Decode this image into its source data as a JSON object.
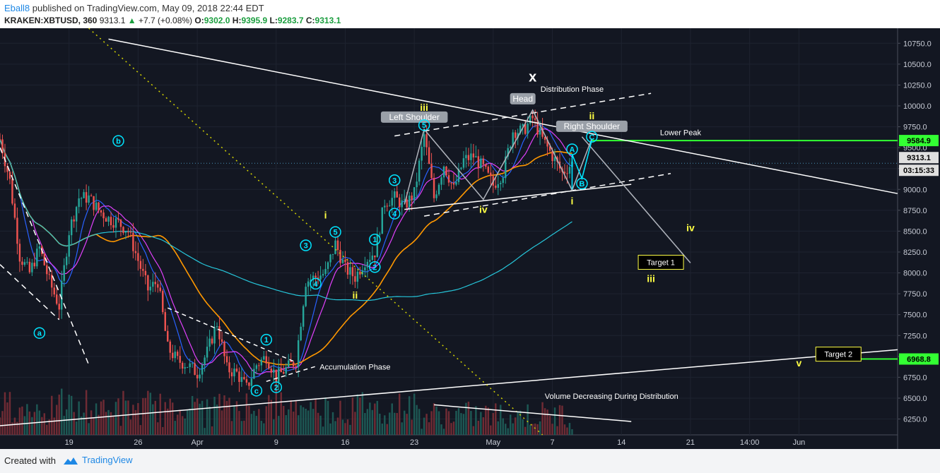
{
  "header": {
    "publisher": "Eball8",
    "published_text": "published on TradingView.com, May 09, 2018 22:44 EDT",
    "symbol": "KRAKEN:XBTUSD, 360",
    "last": "9313.1",
    "change_arrow": "▲",
    "change": "+7.7 (+0.08%)",
    "o_label": "O:",
    "o": "9302.0",
    "h_label": "H:",
    "h": "9395.9",
    "l_label": "L:",
    "l": "9283.7",
    "c_label": "C:",
    "c": "9313.1"
  },
  "footer": {
    "created_with": "Created with",
    "brand": "TradingView",
    "logo_icon": "tradingview-cloud-icon"
  },
  "colors": {
    "up": "#26a69a",
    "down": "#ef5350",
    "price_line": "#2196f3",
    "highlight": "#33ff33",
    "wave": "#ffff44",
    "circle": "#00e5ff",
    "bg": "#131722"
  },
  "chart_data": {
    "type": "candlestick",
    "symbol": "KRAKEN:XBTUSD",
    "timeframe": "360",
    "y_axis": {
      "ticks": [
        "10750.0",
        "10500.0",
        "10250.0",
        "10000.0",
        "9750.0",
        "9500.0",
        "9250.0",
        "9000.0",
        "8750.0",
        "8500.0",
        "8250.0",
        "8000.0",
        "7750.0",
        "7500.0",
        "7250.0",
        "7000.0",
        "6750.0",
        "6500.0",
        "6250.0"
      ],
      "tick_values": [
        10750,
        10500,
        10250,
        10000,
        9750,
        9500,
        9250,
        9000,
        8750,
        8500,
        8250,
        8000,
        7750,
        7500,
        7250,
        7000,
        6750,
        6500,
        6250
      ],
      "ylim": [
        6060,
        10930
      ]
    },
    "x_axis": {
      "ticks": [
        "19",
        "26",
        "Apr",
        "9",
        "16",
        "23",
        "May",
        "7",
        "14",
        "21",
        "14:00",
        "Jun"
      ],
      "tick_dates": [
        "2018-03-19",
        "2018-03-26",
        "2018-04-01",
        "2018-04-09",
        "2018-04-16",
        "2018-04-23",
        "2018-05-01",
        "2018-05-07",
        "2018-05-14",
        "2018-05-21",
        "2018-05-27",
        "2018-06-01"
      ],
      "xlim": [
        "2018-03-12",
        "2018-06-11"
      ]
    },
    "price_labels": [
      {
        "value": 9584.9,
        "text": "9584.9",
        "style": "green"
      },
      {
        "value": 9313.1,
        "text": "9313.1",
        "style": "last"
      },
      {
        "value": 9313.1,
        "text": "03:15:33",
        "style": "countdown"
      },
      {
        "value": 6968.8,
        "text": "6968.8",
        "style": "green"
      }
    ],
    "price_path": [
      [
        "2018-03-12",
        9600
      ],
      [
        "2018-03-13",
        9100
      ],
      [
        "2018-03-14",
        8200
      ],
      [
        "2018-03-15",
        8000
      ],
      [
        "2018-03-16",
        8300
      ],
      [
        "2018-03-17",
        7900
      ],
      [
        "2018-03-18",
        7600
      ],
      [
        "2018-03-19",
        8500
      ],
      [
        "2018-03-20",
        8900
      ],
      [
        "2018-03-21",
        8900
      ],
      [
        "2018-03-22",
        8750
      ],
      [
        "2018-03-23",
        8650
      ],
      [
        "2018-03-24",
        8600
      ],
      [
        "2018-03-25",
        8500
      ],
      [
        "2018-03-26",
        8150
      ],
      [
        "2018-03-27",
        7800
      ],
      [
        "2018-03-28",
        7900
      ],
      [
        "2018-03-29",
        7100
      ],
      [
        "2018-03-30",
        6950
      ],
      [
        "2018-03-31",
        6900
      ],
      [
        "2018-04-01",
        6800
      ],
      [
        "2018-04-02",
        7050
      ],
      [
        "2018-04-03",
        7400
      ],
      [
        "2018-04-04",
        6850
      ],
      [
        "2018-04-05",
        6800
      ],
      [
        "2018-04-06",
        6620
      ],
      [
        "2018-04-07",
        6900
      ],
      [
        "2018-04-08",
        7000
      ],
      [
        "2018-04-09",
        6750
      ],
      [
        "2018-04-10",
        6850
      ],
      [
        "2018-04-11",
        6950
      ],
      [
        "2018-04-12",
        7900
      ],
      [
        "2018-04-13",
        7950
      ],
      [
        "2018-04-14",
        8000
      ],
      [
        "2018-04-15",
        8350
      ],
      [
        "2018-04-16",
        8050
      ],
      [
        "2018-04-17",
        7950
      ],
      [
        "2018-04-18",
        8150
      ],
      [
        "2018-04-19",
        8250
      ],
      [
        "2018-04-20",
        8850
      ],
      [
        "2018-04-21",
        8900
      ],
      [
        "2018-04-22",
        8800
      ],
      [
        "2018-04-23",
        8950
      ],
      [
        "2018-04-24",
        9650
      ],
      [
        "2018-04-25",
        8900
      ],
      [
        "2018-04-26",
        9300
      ],
      [
        "2018-04-27",
        9000
      ],
      [
        "2018-04-28",
        9350
      ],
      [
        "2018-04-29",
        9400
      ],
      [
        "2018-04-30",
        9250
      ],
      [
        "2018-05-01",
        9050
      ],
      [
        "2018-05-02",
        9200
      ],
      [
        "2018-05-03",
        9700
      ],
      [
        "2018-05-04",
        9700
      ],
      [
        "2018-05-05",
        9850
      ],
      [
        "2018-05-06",
        9600
      ],
      [
        "2018-05-07",
        9400
      ],
      [
        "2018-05-08",
        9200
      ],
      [
        "2018-05-09",
        9313.1
      ]
    ],
    "ma_fast_ending": 9400,
    "ma_mid_ending": 9300,
    "ma_slow_ending": 8820,
    "volume_note": "volume histogram at bottom, decreasing during distribution",
    "trendlines": [
      {
        "name": "upper-resistance",
        "from": [
          "2018-03-23",
          10800
        ],
        "to": [
          "2018-06-11",
          8950
        ],
        "style": "solid"
      },
      {
        "name": "long-support",
        "from": [
          "2018-03-12",
          6170
        ],
        "to": [
          "2018-06-11",
          7080
        ],
        "style": "solid"
      },
      {
        "name": "neckline",
        "from": [
          "2018-04-22",
          8760
        ],
        "to": [
          "2018-05-15",
          9060
        ],
        "style": "solid"
      },
      {
        "name": "channel-top",
        "from": [
          "2018-04-21",
          9640
        ],
        "to": [
          "2018-05-17",
          10150
        ],
        "style": "dashed"
      },
      {
        "name": "channel-bottom",
        "from": [
          "2018-04-24",
          8680
        ],
        "to": [
          "2018-05-19",
          9190
        ],
        "style": "dashed"
      },
      {
        "name": "downtrend-diagonal",
        "from": [
          "2018-03-21",
          10930
        ],
        "to": [
          "2018-05-06",
          6060
        ],
        "style": "dotted"
      },
      {
        "name": "projection",
        "from": [
          "2018-05-10",
          9630
        ],
        "to": [
          "2018-05-21",
          8120
        ],
        "style": "solid-grey"
      }
    ],
    "annotations": [
      {
        "text": "Distribution Phase",
        "x": "2018-05-09",
        "y": 10170,
        "kind": "label"
      },
      {
        "text": "Lower Peak",
        "x": "2018-05-20",
        "y": 9650,
        "kind": "label"
      },
      {
        "text": "Accumulation Phase",
        "x": "2018-04-17",
        "y": 6840,
        "kind": "label"
      },
      {
        "text": "Volume Decreasing During Distribution",
        "x": "2018-05-13",
        "y": 6490,
        "kind": "label"
      },
      {
        "text": "Left Shoulder",
        "x": "2018-04-23",
        "y": 9840,
        "kind": "box"
      },
      {
        "text": "Head",
        "x": "2018-05-04",
        "y": 10060,
        "kind": "box"
      },
      {
        "text": "Right Shoulder",
        "x": "2018-05-11",
        "y": 9730,
        "kind": "box"
      },
      {
        "text": "Target 1",
        "x": "2018-05-18",
        "y": 8110,
        "kind": "target"
      },
      {
        "text": "Target 2",
        "x": "2018-06-05",
        "y": 7010,
        "kind": "target"
      },
      {
        "text": "x",
        "x": "2018-05-05",
        "y": 10290,
        "kind": "big"
      }
    ],
    "wave_labels": [
      {
        "text": "iii",
        "x": "2018-04-24",
        "y": 9940
      },
      {
        "text": "ii",
        "x": "2018-05-11",
        "y": 9840
      },
      {
        "text": "iv",
        "x": "2018-04-30",
        "y": 8720
      },
      {
        "text": "i",
        "x": "2018-05-09",
        "y": 8820
      },
      {
        "text": "i",
        "x": "2018-04-14",
        "y": 8650
      },
      {
        "text": "ii",
        "x": "2018-04-17",
        "y": 7690
      },
      {
        "text": "iv",
        "x": "2018-05-21",
        "y": 8500
      },
      {
        "text": "iii",
        "x": "2018-05-17",
        "y": 7890
      },
      {
        "text": "v",
        "x": "2018-06-01",
        "y": 6880
      }
    ],
    "circle_labels": [
      {
        "text": "a",
        "x": "2018-03-16",
        "y": 7280
      },
      {
        "text": "b",
        "x": "2018-03-24",
        "y": 9580
      },
      {
        "text": "c",
        "x": "2018-04-07",
        "y": 6590
      },
      {
        "text": "1",
        "x": "2018-04-08",
        "y": 7200
      },
      {
        "text": "2",
        "x": "2018-04-09",
        "y": 6630
      },
      {
        "text": "3",
        "x": "2018-04-12",
        "y": 8330
      },
      {
        "text": "4",
        "x": "2018-04-13",
        "y": 7870
      },
      {
        "text": "5",
        "x": "2018-04-15",
        "y": 8490
      },
      {
        "text": "1",
        "x": "2018-04-19",
        "y": 8400
      },
      {
        "text": "2",
        "x": "2018-04-19",
        "y": 8070
      },
      {
        "text": "3",
        "x": "2018-04-21",
        "y": 9110
      },
      {
        "text": "4",
        "x": "2018-04-21",
        "y": 8710
      },
      {
        "text": "5",
        "x": "2018-04-24",
        "y": 9770
      },
      {
        "text": "A",
        "x": "2018-05-09",
        "y": 9480
      },
      {
        "text": "B",
        "x": "2018-05-10",
        "y": 9070
      },
      {
        "text": "C",
        "x": "2018-05-11",
        "y": 9630
      }
    ],
    "grid": true
  }
}
